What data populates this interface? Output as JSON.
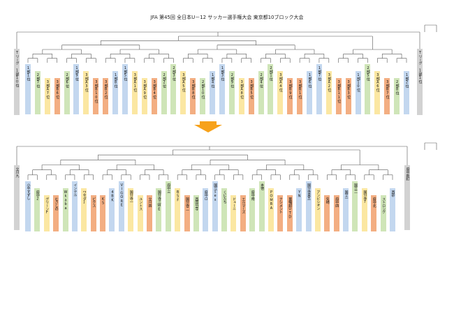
{
  "title": "JFA 第45回 全日本U－12 サッカー選手権大会 東京都10ブロック大会",
  "top_bracket": {
    "left_end": "Tリーグ 1部10位",
    "right_end": "Tリーグ 1部1位",
    "teams": [
      {
        "label": "1部1位",
        "color": "blue"
      },
      {
        "label": "2部7位",
        "color": "green"
      },
      {
        "label": "3部A7位",
        "color": "yellow"
      },
      {
        "label": "3部B6位",
        "color": "orange"
      },
      {
        "label": "2部6位",
        "color": "green"
      },
      {
        "label": "1部9位",
        "color": "blue"
      },
      {
        "label": "3部A3位",
        "color": "yellow"
      },
      {
        "label": "3部B10位",
        "color": "orange"
      },
      {
        "label": "3部B2位",
        "color": "orange"
      },
      {
        "label": "1部8位",
        "color": "blue"
      },
      {
        "label": "1部5位",
        "color": "blue"
      },
      {
        "label": "3部A1位",
        "color": "yellow"
      },
      {
        "label": "3部A9位",
        "color": "yellow"
      },
      {
        "label": "3部B4位",
        "color": "orange"
      },
      {
        "label": "2部2位",
        "color": "green"
      },
      {
        "label": "2部3位",
        "color": "green"
      },
      {
        "label": "3部A5位",
        "color": "yellow"
      },
      {
        "label": "3部B8位",
        "color": "orange"
      },
      {
        "label": "2部10位",
        "color": "green"
      },
      {
        "label": "1部4位",
        "color": "blue"
      },
      {
        "label": "1部3位",
        "color": "blue"
      },
      {
        "label": "2部9位",
        "color": "green"
      },
      {
        "label": "3部A8位",
        "color": "yellow"
      },
      {
        "label": "3部B5位",
        "color": "orange"
      },
      {
        "label": "2部4位",
        "color": "green"
      },
      {
        "label": "2部1位",
        "color": "green"
      },
      {
        "label": "3部A4位",
        "color": "yellow"
      },
      {
        "label": "3部B9位",
        "color": "orange"
      },
      {
        "label": "3部B1位",
        "color": "orange"
      },
      {
        "label": "1部6位",
        "color": "blue"
      },
      {
        "label": "1部7位",
        "color": "blue"
      },
      {
        "label": "3部A2位",
        "color": "yellow"
      },
      {
        "label": "3部B11位",
        "color": "orange"
      },
      {
        "label": "3部B3位",
        "color": "orange"
      },
      {
        "label": "1部10位",
        "color": "blue"
      },
      {
        "label": "2部5位",
        "color": "green"
      },
      {
        "label": "3部A6位",
        "color": "yellow"
      },
      {
        "label": "3部B7位",
        "color": "orange"
      },
      {
        "label": "2部8位",
        "color": "green"
      },
      {
        "label": "1部2位",
        "color": "blue"
      }
    ]
  },
  "bottom_bracket": {
    "left_end": "立川九",
    "right_end": "府中新町",
    "teams": [
      {
        "label": "小平すずし",
        "color": "blue"
      },
      {
        "label": "府中2",
        "color": "green"
      },
      {
        "label": "グリーンF",
        "color": "yellow"
      },
      {
        "label": "むさしの",
        "color": "orange"
      },
      {
        "label": "Wkaba",
        "color": "green"
      },
      {
        "label": "インテル",
        "color": "blue"
      },
      {
        "label": "ワセダJ",
        "color": "yellow"
      },
      {
        "label": "ビクス",
        "color": "orange"
      },
      {
        "label": "KS",
        "color": "orange"
      },
      {
        "label": "4BK",
        "color": "blue"
      },
      {
        "label": "VIGORE",
        "color": "blue"
      },
      {
        "label": "国分寺一",
        "color": "yellow"
      },
      {
        "label": "ユントス",
        "color": "yellow"
      },
      {
        "label": "立川四",
        "color": "orange"
      },
      {
        "label": "国分寺三WE",
        "color": "green"
      },
      {
        "label": "府中三",
        "color": "green"
      },
      {
        "label": "BSF",
        "color": "yellow"
      },
      {
        "label": "国分寺二",
        "color": "orange"
      },
      {
        "label": "西国分寺",
        "color": "green"
      },
      {
        "label": "府中ロ",
        "color": "blue"
      },
      {
        "label": "国立ses",
        "color": "blue"
      },
      {
        "label": "くにたち",
        "color": "green"
      },
      {
        "label": "ドューニ",
        "color": "yellow"
      },
      {
        "label": "エルマーズ",
        "color": "orange"
      },
      {
        "label": "府中南",
        "color": "green"
      },
      {
        "label": "本宿",
        "color": "green"
      },
      {
        "label": "POMBA",
        "color": "yellow"
      },
      {
        "label": "ナシメント",
        "color": "orange"
      },
      {
        "label": "華暢卸UTD",
        "color": "orange"
      },
      {
        "label": "YN",
        "color": "blue"
      },
      {
        "label": "国分寺東五",
        "color": "blue"
      },
      {
        "label": "アンビシオン",
        "color": "yellow"
      },
      {
        "label": "矢崎",
        "color": "orange"
      },
      {
        "label": "府中四",
        "color": "orange"
      },
      {
        "label": "国立一",
        "color": "blue"
      },
      {
        "label": "国立二",
        "color": "green"
      },
      {
        "label": "国分寺7",
        "color": "yellow"
      },
      {
        "label": "府中北",
        "color": "orange"
      },
      {
        "label": "ストロング",
        "color": "green"
      },
      {
        "label": "西砂",
        "color": "blue"
      }
    ]
  },
  "colors": {
    "blue": "#c3d7ef",
    "green": "#cfe5b8",
    "yellow": "#fbe7a2",
    "orange": "#f3ae82",
    "gray": "#d2d2d2",
    "arrow": "#f7a21b",
    "line": "#555555"
  }
}
